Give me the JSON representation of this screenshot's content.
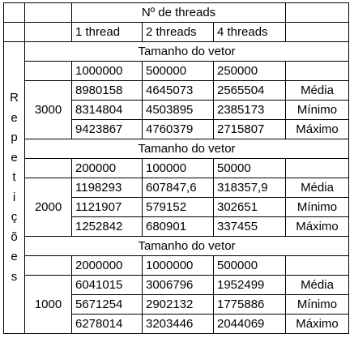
{
  "header": {
    "threads_label": "Nº de threads",
    "columns": [
      "1 thread",
      "2 threads",
      "4 threads"
    ]
  },
  "vertical_label": [
    "R",
    "e",
    "p",
    "e",
    "t",
    "i",
    "ç",
    "õ",
    "e",
    "s"
  ],
  "stat_labels": [
    "Média",
    "Mínimo",
    "Máximo"
  ],
  "sections": [
    {
      "title": "Tamanho do vetor",
      "repetitions": "3000",
      "sizes": [
        "1000000",
        "500000",
        "250000"
      ],
      "rows": [
        [
          "8980158",
          "4645073",
          "2565504"
        ],
        [
          "8314804",
          "4503895",
          "2385173"
        ],
        [
          "9423867",
          "4760379",
          "2715807"
        ]
      ]
    },
    {
      "title": "Tamanho do vetor",
      "repetitions": "2000",
      "sizes": [
        "200000",
        "100000",
        "50000"
      ],
      "rows": [
        [
          "1198293",
          "607847,6",
          "318357,9"
        ],
        [
          "1121907",
          "579152",
          "302651"
        ],
        [
          "1252842",
          "680901",
          "337455"
        ]
      ]
    },
    {
      "title": "Tamanho do vetor",
      "repetitions": "1000",
      "sizes": [
        "2000000",
        "1000000",
        "500000"
      ],
      "rows": [
        [
          "6041015",
          "3006796",
          "1952499"
        ],
        [
          "5671254",
          "2902132",
          "1775886"
        ],
        [
          "6278014",
          "3203446",
          "2044069"
        ]
      ]
    }
  ]
}
